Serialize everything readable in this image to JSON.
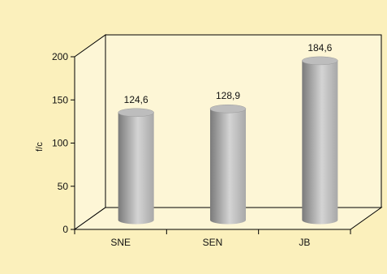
{
  "chart_data": {
    "type": "bar",
    "style": "3d-cylinder",
    "categories": [
      "SNE",
      "SEN",
      "JB"
    ],
    "values": [
      124.6,
      128.9,
      184.6
    ],
    "value_labels": [
      "124,6",
      "128,9",
      "184,6"
    ],
    "ylabel": "f/c",
    "xlabel": "",
    "ylim": [
      0,
      200
    ],
    "yticks": [
      0,
      50,
      100,
      150,
      200
    ],
    "grid": false,
    "colors": {
      "background": "#fbf0bc",
      "plot_background": "#fdf6d6",
      "bar_dark": "#7a7a7a",
      "bar_light": "#d4d4d4",
      "axis": "#000000"
    }
  }
}
